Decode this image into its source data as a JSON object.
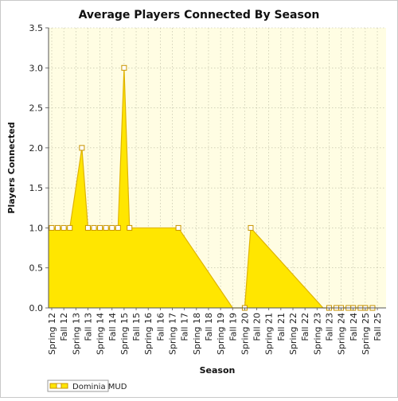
{
  "chart_data": {
    "type": "area",
    "title": "Average Players Connected By Season",
    "xlabel": "Season",
    "ylabel": "Players Connected",
    "ylim": [
      0,
      3.5
    ],
    "yticks": [
      "0.0",
      "0.5",
      "1.0",
      "1.5",
      "2.0",
      "2.5",
      "3.0",
      "3.5"
    ],
    "x_tick_labels": [
      "Spring 12",
      "Fall 12",
      "Spring 13",
      "Fall 13",
      "Spring 14",
      "Fall 14",
      "Spring 15",
      "Fall 15",
      "Spring 16",
      "Fall 16",
      "Spring 17",
      "Fall 17",
      "Spring 18",
      "Fall 18",
      "Spring 19",
      "Fall 19",
      "Spring 20",
      "Fall 20",
      "Spring 21",
      "Fall 21",
      "Spring 22",
      "Fall 22",
      "Spring 23",
      "Fall 23",
      "Spring 24",
      "Fall 24",
      "Spring 25",
      "Fall 25"
    ],
    "grid": true,
    "legend_position": "bottom-left",
    "colors": {
      "fill": "#ffe600",
      "line": "#e0b400",
      "marker_fill": "#ffffff",
      "marker_stroke": "#c89400",
      "plot_bg": "#fffde3",
      "grid": "#b8b8a0"
    },
    "series": [
      {
        "name": "Dominia MUD",
        "points": [
          {
            "season": "Spring 12",
            "value": 1.0,
            "marker": true
          },
          {
            "season": "",
            "value": 1.0,
            "marker": true
          },
          {
            "season": "Fall 12",
            "value": 1.0,
            "marker": true
          },
          {
            "season": "",
            "value": 1.0,
            "marker": true
          },
          {
            "season": "",
            "value": 2.0,
            "marker": true
          },
          {
            "season": "Fall 13",
            "value": 1.0,
            "marker": true
          },
          {
            "season": "",
            "value": 1.0,
            "marker": true
          },
          {
            "season": "Spring 14",
            "value": 1.0,
            "marker": true
          },
          {
            "season": "",
            "value": 1.0,
            "marker": true
          },
          {
            "season": "",
            "value": 1.0,
            "marker": true
          },
          {
            "season": "",
            "value": 1.0,
            "marker": true
          },
          {
            "season": "Spring 15",
            "value": 3.0,
            "marker": true
          },
          {
            "season": "",
            "value": 1.0,
            "marker": true
          },
          {
            "season": "",
            "value": 1.0,
            "marker": false
          },
          {
            "season": "Spring 17",
            "value": 1.0,
            "marker": true
          },
          {
            "season": "",
            "value": 0.0,
            "marker": false
          },
          {
            "season": "Spring 20",
            "value": 0.0,
            "marker": true
          },
          {
            "season": "Fall 20",
            "value": 1.0,
            "marker": true
          },
          {
            "season": "Fall 23",
            "value": 0.0,
            "marker": false
          },
          {
            "season": "Spring 24",
            "value": 0.0,
            "marker": true
          },
          {
            "season": "",
            "value": 0.0,
            "marker": true
          },
          {
            "season": "Fall 24",
            "value": 0.0,
            "marker": true
          },
          {
            "season": "",
            "value": 0.0,
            "marker": true
          },
          {
            "season": "Spring 25",
            "value": 0.0,
            "marker": true
          },
          {
            "season": "",
            "value": 0.0,
            "marker": true
          },
          {
            "season": "Fall 25",
            "value": 0.0,
            "marker": true
          },
          {
            "season": "",
            "value": 0.0,
            "marker": true
          }
        ]
      }
    ]
  }
}
